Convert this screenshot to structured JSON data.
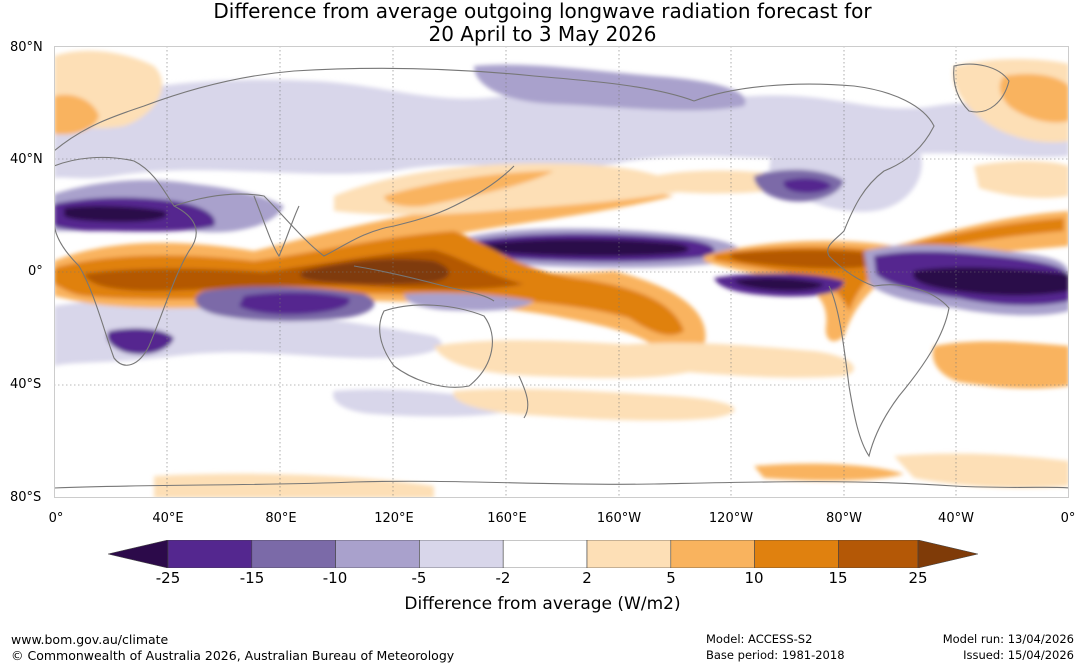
{
  "title_line1": "Difference from average outgoing longwave radiation forecast for",
  "title_line2": "20 April to 3 May 2026",
  "lat_labels": [
    "80°N",
    "40°N",
    "0°",
    "40°S",
    "80°S"
  ],
  "lon_labels": [
    "0°",
    "40°E",
    "80°E",
    "120°E",
    "160°E",
    "160°W",
    "120°W",
    "80°W",
    "40°W",
    "0°"
  ],
  "legend": {
    "ticks": [
      "-25",
      "-15",
      "-10",
      "-5",
      "-2",
      "2",
      "5",
      "10",
      "15",
      "25"
    ],
    "colors": [
      "#2c0a4a",
      "#54278f",
      "#7b6aa8",
      "#a9a1cc",
      "#d8d6ea",
      "#ffffff",
      "#fddfb6",
      "#f9b35e",
      "#e0810f",
      "#b45806",
      "#7f3b08"
    ],
    "title": "Difference from average (W/m2)"
  },
  "footer": {
    "website": "www.bom.gov.au/climate",
    "copyright": "© Commonwealth of Australia 2026, Australian Bureau of Meteorology",
    "model": "Model: ACCESS-S2",
    "base_period": "Base period: 1981-2018",
    "model_run": "Model run: 13/04/2026",
    "issued": "Issued: 15/04/2026"
  }
}
